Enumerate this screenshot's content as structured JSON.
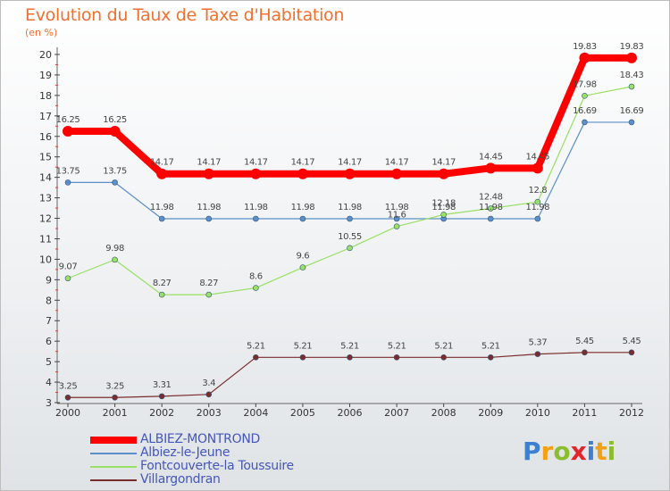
{
  "title": "Evolution du Taux de Taxe d'Habitation",
  "unit": "(en %)",
  "logo": "Proxiti",
  "chart_data": {
    "type": "line",
    "x": [
      "2000",
      "2001",
      "2002",
      "2003",
      "2004",
      "2005",
      "2006",
      "2007",
      "2008",
      "2009",
      "2010",
      "2011",
      "2012"
    ],
    "ylim": [
      3,
      20
    ],
    "yticks": [
      3,
      4,
      5,
      6,
      7,
      8,
      9,
      10,
      11,
      12,
      13,
      14,
      15,
      16,
      17,
      18,
      19,
      20
    ],
    "grid": false,
    "legend_position": "bottom-left",
    "series": [
      {
        "name": "ALBIEZ-MONTROND",
        "color": "#ff0000",
        "values": [
          16.25,
          16.25,
          14.17,
          14.17,
          14.17,
          14.17,
          14.17,
          14.17,
          14.17,
          14.45,
          14.45,
          19.83,
          19.83
        ],
        "labels": [
          "16.25",
          "16.25",
          "14.17",
          "14.17",
          "14.17",
          "14.17",
          "14.17",
          "14.17",
          "14.17",
          "14.45",
          "14.45",
          "19.83",
          "19.83"
        ]
      },
      {
        "name": "Albiez-le-Jeune",
        "color": "#5b8fc9",
        "values": [
          13.75,
          13.75,
          11.98,
          11.98,
          11.98,
          11.98,
          11.98,
          11.98,
          11.98,
          11.98,
          11.98,
          16.69,
          16.69
        ],
        "labels": [
          "13.75",
          "13.75",
          "11.98",
          "11.98",
          "11.98",
          "11.98",
          "11.98",
          "11.98",
          "11.98",
          "11.98",
          "11.98",
          "16.69",
          "16.69"
        ]
      },
      {
        "name": "Fontcouverte-la Toussuire",
        "color": "#99e066",
        "values": [
          9.07,
          9.98,
          8.27,
          8.27,
          8.6,
          9.6,
          10.55,
          11.6,
          12.18,
          12.48,
          12.8,
          17.98,
          18.43
        ],
        "labels": [
          "9.07",
          "9.98",
          "8.27",
          "8.27",
          "8.6",
          "9.6",
          "10.55",
          "11.6",
          "12.18",
          "12.48",
          "12.8",
          "17.98",
          "18.43"
        ]
      },
      {
        "name": "Villargondran",
        "color": "#7a2d2d",
        "values": [
          3.25,
          3.25,
          3.31,
          3.4,
          5.21,
          5.21,
          5.21,
          5.21,
          5.21,
          5.21,
          5.37,
          5.45,
          5.45
        ],
        "labels": [
          "3.25",
          "3.25",
          "3.31",
          "3.4",
          "5.21",
          "5.21",
          "5.21",
          "5.21",
          "5.21",
          "5.21",
          "5.37",
          "5.45",
          "5.45"
        ]
      }
    ]
  }
}
